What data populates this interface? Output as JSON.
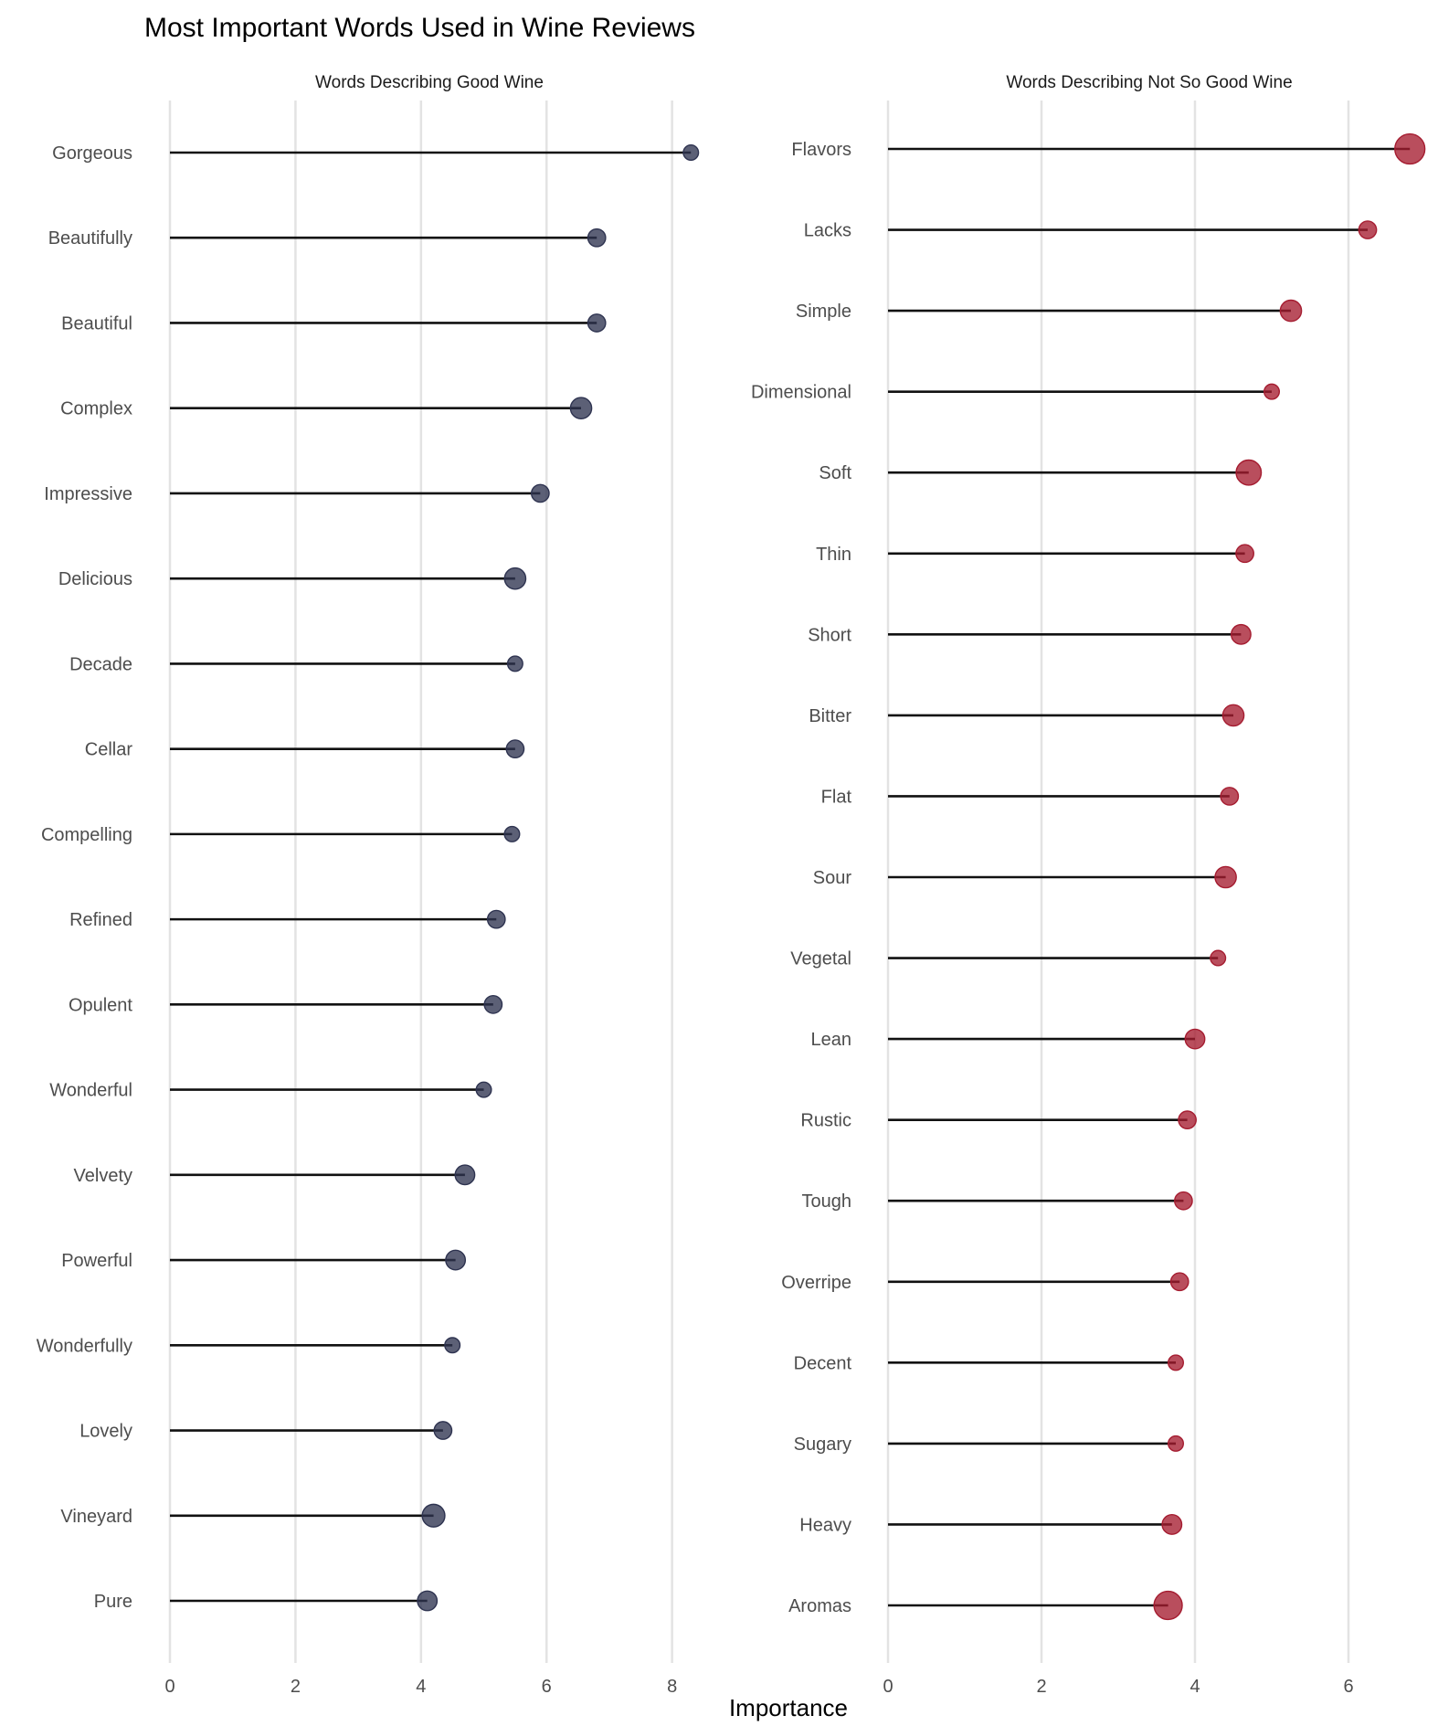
{
  "chart_data": {
    "type": "lollipop",
    "title": "Most Important Words Used in Wine Reviews",
    "xlabel": "Importance",
    "panels": [
      {
        "title": "Words Describing Good Wine",
        "xlim": [
          0,
          8.5
        ],
        "xticks": [
          0,
          2,
          4,
          6,
          8
        ],
        "color": "#2e3350",
        "categories": [
          "Gorgeous",
          "Beautifully",
          "Beautiful",
          "Complex",
          "Impressive",
          "Delicious",
          "Decade",
          "Cellar",
          "Compelling",
          "Refined",
          "Opulent",
          "Wonderful",
          "Velvety",
          "Powerful",
          "Wonderfully",
          "Lovely",
          "Vineyard",
          "Pure"
        ],
        "values": [
          8.3,
          6.8,
          6.8,
          6.55,
          5.9,
          5.5,
          5.5,
          5.5,
          5.45,
          5.2,
          5.15,
          5.0,
          4.7,
          4.55,
          4.5,
          4.35,
          4.2,
          4.1
        ],
        "point_size": [
          1,
          2,
          2,
          4,
          2,
          4,
          1,
          2,
          1,
          2,
          2,
          1,
          3,
          3,
          1,
          2,
          5,
          3
        ]
      },
      {
        "title": "Words Describing Not So Good Wine",
        "xlim": [
          0,
          7.0
        ],
        "xticks": [
          0,
          2,
          4,
          6
        ],
        "color": "#a51c30",
        "categories": [
          "Flavors",
          "Lacks",
          "Simple",
          "Dimensional",
          "Soft",
          "Thin",
          "Short",
          "Bitter",
          "Flat",
          "Sour",
          "Vegetal",
          "Lean",
          "Rustic",
          "Tough",
          "Overripe",
          "Decent",
          "Sugary",
          "Heavy",
          "Aromas"
        ],
        "values": [
          6.8,
          6.25,
          5.25,
          5.0,
          4.7,
          4.65,
          4.6,
          4.5,
          4.45,
          4.4,
          4.3,
          4.0,
          3.9,
          3.85,
          3.8,
          3.75,
          3.75,
          3.7,
          3.65
        ],
        "point_size": [
          12,
          2,
          4,
          1,
          7,
          2,
          3,
          4,
          2,
          4,
          1,
          3,
          2,
          2,
          2,
          1,
          1,
          3,
          10
        ]
      }
    ]
  }
}
